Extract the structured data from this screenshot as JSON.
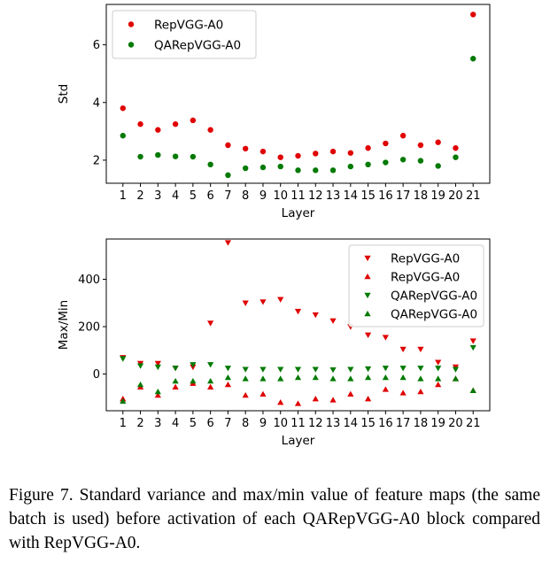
{
  "caption": "Figure 7. Standard variance and max/min value of feature maps (the same batch is used) before activation of each QARepVGG-A0 block compared with RepVGG-A0.",
  "colors": {
    "repvgg": "#e00000",
    "qarepvgg": "#007a00"
  },
  "chart_data": [
    {
      "type": "scatter",
      "xlabel": "Layer",
      "ylabel": "Std",
      "x": [
        1,
        2,
        3,
        4,
        5,
        6,
        7,
        8,
        9,
        10,
        11,
        12,
        13,
        14,
        15,
        16,
        17,
        18,
        19,
        20,
        21
      ],
      "xticks": [
        1,
        2,
        3,
        4,
        5,
        6,
        7,
        8,
        9,
        10,
        11,
        12,
        13,
        14,
        15,
        16,
        17,
        18,
        19,
        20,
        21
      ],
      "xlim": [
        0.05,
        21.95
      ],
      "ylim": [
        1.2,
        7.4
      ],
      "yticks": [
        2,
        4,
        6
      ],
      "legend_position": "upper-left",
      "series": [
        {
          "name": "RepVGG-A0",
          "marker": "circle",
          "color": "#e00000",
          "values": [
            3.8,
            3.25,
            3.05,
            3.25,
            3.38,
            3.05,
            2.52,
            2.4,
            2.3,
            2.1,
            2.15,
            2.23,
            2.3,
            2.25,
            2.42,
            2.58,
            2.85,
            2.52,
            2.62,
            2.42,
            7.05
          ]
        },
        {
          "name": "QARepVGG-A0",
          "marker": "circle",
          "color": "#007a00",
          "values": [
            2.85,
            2.12,
            2.18,
            2.13,
            2.12,
            1.85,
            1.48,
            1.72,
            1.75,
            1.78,
            1.65,
            1.65,
            1.65,
            1.78,
            1.85,
            1.92,
            2.02,
            1.98,
            1.8,
            2.1,
            5.52
          ]
        }
      ]
    },
    {
      "type": "scatter",
      "xlabel": "Layer",
      "ylabel": "Max/Min",
      "x": [
        1,
        2,
        3,
        4,
        5,
        6,
        7,
        8,
        9,
        10,
        11,
        12,
        13,
        14,
        15,
        16,
        17,
        18,
        19,
        20,
        21
      ],
      "xticks": [
        1,
        2,
        3,
        4,
        5,
        6,
        7,
        8,
        9,
        10,
        11,
        12,
        13,
        14,
        15,
        16,
        17,
        18,
        19,
        20,
        21
      ],
      "xlim": [
        0.05,
        21.95
      ],
      "ylim": [
        -155,
        570
      ],
      "yticks": [
        0,
        200,
        400
      ],
      "legend_position": "upper-right",
      "series": [
        {
          "name": "RepVGG-A0",
          "marker": "triangle-down",
          "color": "#e00000",
          "values": [
            70,
            45,
            45,
            25,
            30,
            215,
            555,
            300,
            305,
            315,
            265,
            250,
            225,
            200,
            165,
            155,
            105,
            105,
            50,
            30,
            140
          ]
        },
        {
          "name": "RepVGG-A0",
          "marker": "triangle-up",
          "color": "#e00000",
          "values": [
            -105,
            -55,
            -90,
            -55,
            -40,
            -55,
            -45,
            -90,
            -85,
            -120,
            -125,
            -105,
            -110,
            -85,
            -105,
            -65,
            -80,
            -75,
            -45,
            -20,
            -70
          ]
        },
        {
          "name": "QARepVGG-A0",
          "marker": "triangle-down",
          "color": "#007a00",
          "values": [
            65,
            35,
            30,
            25,
            40,
            40,
            25,
            20,
            20,
            20,
            20,
            20,
            18,
            20,
            22,
            25,
            25,
            25,
            25,
            20,
            112
          ]
        },
        {
          "name": "QARepVGG-A0",
          "marker": "triangle-up",
          "color": "#007a00",
          "values": [
            -115,
            -45,
            -75,
            -30,
            -30,
            -30,
            -15,
            -20,
            -20,
            -20,
            -15,
            -15,
            -20,
            -20,
            -15,
            -15,
            -15,
            -20,
            -20,
            -20,
            -70
          ]
        }
      ]
    }
  ]
}
